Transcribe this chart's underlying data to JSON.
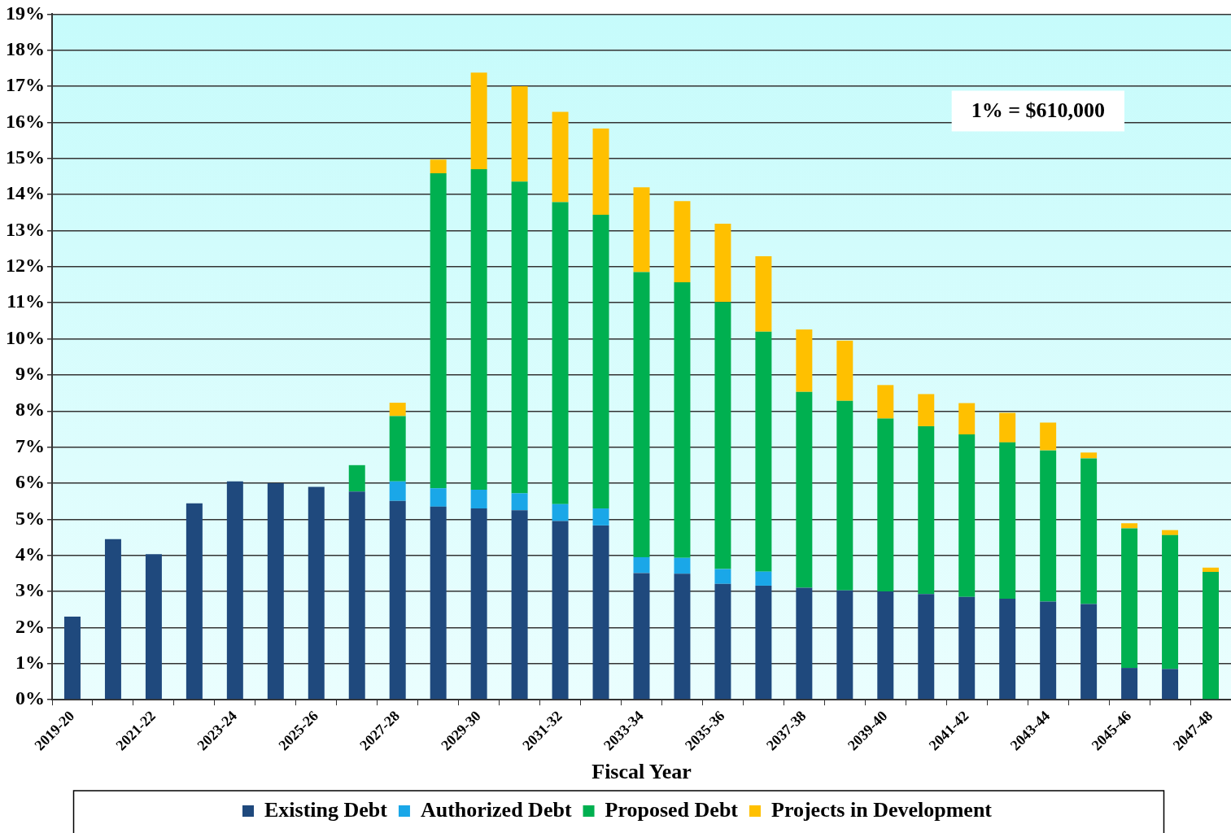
{
  "chart_data": {
    "type": "bar",
    "stacked": true,
    "xlabel": "Fiscal Year",
    "categories": [
      "2019-20",
      null,
      "2021-22",
      null,
      "2023-24",
      null,
      "2025-26",
      null,
      "2027-28",
      null,
      "2029-30",
      null,
      "2031-32",
      null,
      "2033-34",
      null,
      "2035-36",
      null,
      "2037-38",
      null,
      "2039-40",
      null,
      "2041-42",
      null,
      "2043-44",
      null,
      "2045-46",
      null,
      "2047-48"
    ],
    "series": [
      {
        "name": "Existing Debt",
        "color": "#1f497d",
        "values": [
          2.3,
          4.45,
          4.03,
          5.44,
          6.05,
          6.0,
          5.9,
          5.77,
          5.51,
          5.35,
          5.3,
          5.25,
          4.95,
          4.83,
          3.51,
          3.49,
          3.21,
          3.16,
          3.1,
          3.03,
          3.0,
          2.93,
          2.85,
          2.8,
          2.72,
          2.65,
          0.88,
          0.85,
          null
        ]
      },
      {
        "name": "Authorized Debt",
        "color": "#1aa7e8",
        "values": [
          null,
          null,
          null,
          null,
          null,
          null,
          null,
          null,
          0.54,
          0.51,
          0.52,
          0.47,
          0.47,
          0.47,
          0.44,
          0.44,
          0.41,
          0.39,
          null,
          null,
          null,
          null,
          null,
          null,
          null,
          null,
          null,
          null,
          null
        ]
      },
      {
        "name": "Proposed Debt",
        "color": "#00b050",
        "values": [
          null,
          null,
          null,
          null,
          null,
          null,
          null,
          0.73,
          1.81,
          8.73,
          8.88,
          8.64,
          8.37,
          8.14,
          7.9,
          7.64,
          7.4,
          6.65,
          5.43,
          5.25,
          4.79,
          4.65,
          4.5,
          4.33,
          4.19,
          4.04,
          3.87,
          3.71,
          3.54
        ]
      },
      {
        "name": "Projects in Development",
        "color": "#ffc000",
        "values": [
          null,
          null,
          null,
          null,
          null,
          null,
          null,
          null,
          0.37,
          0.38,
          2.68,
          2.64,
          2.5,
          2.39,
          2.35,
          2.25,
          2.17,
          2.09,
          1.73,
          1.67,
          0.93,
          0.89,
          0.87,
          0.82,
          0.77,
          0.16,
          0.14,
          0.14,
          0.12
        ]
      }
    ],
    "ylim": [
      0,
      19
    ],
    "yticks": [
      {
        "value": 0,
        "label": "0%"
      },
      {
        "value": 1,
        "label": "1%"
      },
      {
        "value": 2,
        "label": "2%"
      },
      {
        "value": 3,
        "label": "3%"
      },
      {
        "value": 4,
        "label": "4%"
      },
      {
        "value": 5,
        "label": "5%"
      },
      {
        "value": 6,
        "label": "6%"
      },
      {
        "value": 7,
        "label": "7%"
      },
      {
        "value": 8,
        "label": "8%"
      },
      {
        "value": 9,
        "label": "9%"
      },
      {
        "value": 10,
        "label": "10%"
      },
      {
        "value": 11,
        "label": "11%"
      },
      {
        "value": 12,
        "label": "12%"
      },
      {
        "value": 13,
        "label": "13%"
      },
      {
        "value": 14,
        "label": "14%"
      },
      {
        "value": 15,
        "label": "15%"
      },
      {
        "value": 16,
        "label": "16%"
      },
      {
        "value": 17,
        "label": "17%"
      },
      {
        "value": 18,
        "label": "18%"
      },
      {
        "value": 19,
        "label": "19%"
      }
    ],
    "grid": "y",
    "legend": "bottom",
    "annotations": [
      "1% = $610,000"
    ]
  }
}
